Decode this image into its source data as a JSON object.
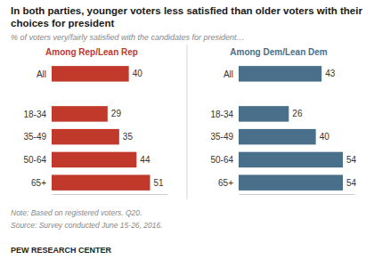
{
  "chart_data": {
    "type": "bar",
    "orientation": "horizontal",
    "title": "In both parties, younger voters less satisfied than older voters with their choices for president",
    "subtitle": "% of voters very/fairly satisfied with the candidates for president…",
    "categories": [
      "All",
      "18-34",
      "35-49",
      "50-64",
      "65+"
    ],
    "series": [
      {
        "name": "Among Rep/Lean Rep",
        "color": "#c0392b",
        "values": [
          40,
          29,
          35,
          44,
          51
        ]
      },
      {
        "name": "Among Dem/Lean Dem",
        "color": "#4a6f8a",
        "values": [
          43,
          26,
          40,
          54,
          54
        ]
      }
    ],
    "xlim": [
      0,
      60
    ],
    "xticks": [],
    "tick_labels": "y",
    "data_labels": true,
    "grid": false,
    "annotations": [
      "Note: Based on registered voters. Q20.",
      "Source: Survey conducted June 15-26, 2016.",
      "PEW RESEARCH CENTER"
    ]
  }
}
